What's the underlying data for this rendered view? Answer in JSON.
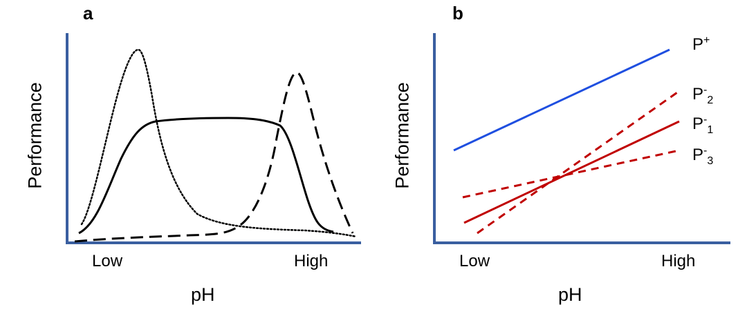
{
  "panel_a": {
    "letter": "a",
    "ylabel": "Performance",
    "xlabel": "pH",
    "x_ticks": [
      "Low",
      "High"
    ]
  },
  "panel_b": {
    "letter": "b",
    "ylabel": "Performance",
    "xlabel": "pH",
    "x_ticks": [
      "Low",
      "High"
    ],
    "labels": {
      "p_plus": {
        "base": "P",
        "sup": "+",
        "sub": ""
      },
      "p_minus_2": {
        "base": "P",
        "sup": "-",
        "sub": "2"
      },
      "p_minus_1": {
        "base": "P",
        "sup": "-",
        "sub": "1"
      },
      "p_minus_3": {
        "base": "P",
        "sup": "-",
        "sub": "3"
      }
    }
  },
  "colors": {
    "axis": "#3a5fa0",
    "curves_a": "#000000",
    "p_plus": "#1f4fe0",
    "p_minus": "#c00000"
  }
}
